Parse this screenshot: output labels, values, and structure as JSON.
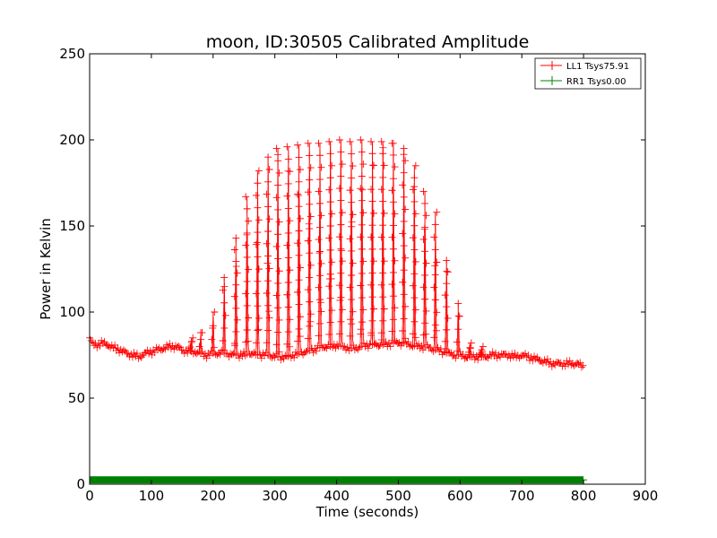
{
  "chart_data": {
    "type": "line",
    "title": "moon, ID:30505 Calibrated Amplitude",
    "xlabel": "Time (seconds)",
    "ylabel": "Power in Kelvin",
    "xlim": [
      0,
      900
    ],
    "ylim": [
      0,
      250
    ],
    "xticks": [
      "0",
      "100",
      "200",
      "300",
      "400",
      "500",
      "600",
      "700",
      "800",
      "900"
    ],
    "yticks": [
      "0",
      "50",
      "100",
      "150",
      "200",
      "250"
    ],
    "grid": false,
    "legend_position": "top-right",
    "series": [
      {
        "name": "LL1 Tsys75.91",
        "color": "#ff0000",
        "marker": "+",
        "baseline": [
          [
            0,
            85
          ],
          [
            5,
            81
          ],
          [
            10,
            81
          ],
          [
            20,
            82
          ],
          [
            30,
            81
          ],
          [
            40,
            79
          ],
          [
            50,
            78
          ],
          [
            60,
            76
          ],
          [
            70,
            75
          ],
          [
            80,
            74
          ],
          [
            90,
            76
          ],
          [
            100,
            77
          ],
          [
            110,
            78
          ],
          [
            120,
            79
          ],
          [
            130,
            80
          ],
          [
            140,
            80
          ],
          [
            150,
            78
          ],
          [
            160,
            77
          ],
          [
            170,
            77
          ],
          [
            180,
            76
          ],
          [
            190,
            75
          ],
          [
            200,
            76
          ],
          [
            210,
            76
          ],
          [
            220,
            76
          ],
          [
            230,
            75
          ],
          [
            240,
            75
          ],
          [
            250,
            75
          ],
          [
            260,
            76
          ],
          [
            270,
            75
          ],
          [
            280,
            75
          ],
          [
            290,
            75
          ],
          [
            300,
            74
          ],
          [
            310,
            74
          ],
          [
            320,
            74
          ],
          [
            330,
            75
          ],
          [
            340,
            76
          ],
          [
            350,
            77
          ],
          [
            360,
            78
          ],
          [
            370,
            79
          ],
          [
            380,
            80
          ],
          [
            390,
            80
          ],
          [
            400,
            81
          ],
          [
            410,
            80
          ],
          [
            420,
            79
          ],
          [
            430,
            79
          ],
          [
            440,
            80
          ],
          [
            450,
            81
          ],
          [
            460,
            81
          ],
          [
            470,
            81
          ],
          [
            480,
            81
          ],
          [
            490,
            82
          ],
          [
            500,
            82
          ],
          [
            510,
            82
          ],
          [
            520,
            81
          ],
          [
            530,
            80
          ],
          [
            540,
            80
          ],
          [
            550,
            79
          ],
          [
            560,
            78
          ],
          [
            570,
            77
          ],
          [
            580,
            76
          ],
          [
            590,
            75
          ],
          [
            600,
            75
          ],
          [
            610,
            74
          ],
          [
            620,
            74
          ],
          [
            630,
            74
          ],
          [
            640,
            74
          ],
          [
            650,
            75
          ],
          [
            660,
            75
          ],
          [
            670,
            75
          ],
          [
            680,
            75
          ],
          [
            690,
            74
          ],
          [
            700,
            75
          ],
          [
            710,
            74
          ],
          [
            720,
            73
          ],
          [
            730,
            72
          ],
          [
            740,
            71
          ],
          [
            750,
            70
          ],
          [
            760,
            70
          ],
          [
            770,
            70
          ],
          [
            780,
            70
          ],
          [
            790,
            70
          ],
          [
            800,
            68
          ]
        ],
        "peaks": [
          [
            165,
            85
          ],
          [
            180,
            88
          ],
          [
            200,
            100
          ],
          [
            218,
            120
          ],
          [
            237,
            143
          ],
          [
            255,
            167
          ],
          [
            272,
            182
          ],
          [
            289,
            190
          ],
          [
            305,
            195
          ],
          [
            322,
            196
          ],
          [
            339,
            197
          ],
          [
            356,
            198
          ],
          [
            373,
            198
          ],
          [
            390,
            199
          ],
          [
            407,
            200
          ],
          [
            424,
            199
          ],
          [
            441,
            200
          ],
          [
            458,
            199
          ],
          [
            475,
            199
          ],
          [
            492,
            198
          ],
          [
            509,
            195
          ],
          [
            526,
            185
          ],
          [
            543,
            170
          ],
          [
            560,
            158
          ],
          [
            578,
            130
          ],
          [
            597,
            105
          ],
          [
            616,
            82
          ],
          [
            635,
            80
          ]
        ]
      },
      {
        "name": "RR1 Tsys0.00",
        "color": "#008000",
        "marker": "+",
        "baseline": [
          [
            0,
            2.5
          ],
          [
            800,
            2.5
          ]
        ],
        "peaks": []
      }
    ]
  }
}
